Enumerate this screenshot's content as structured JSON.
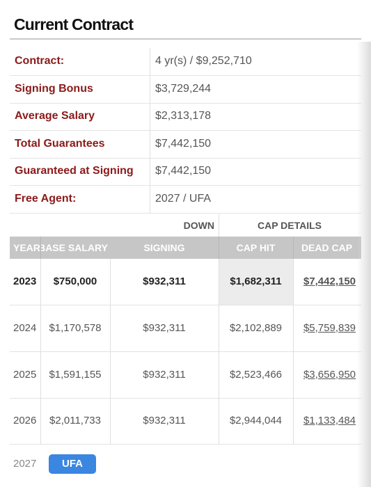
{
  "header": {
    "title": "Current Contract"
  },
  "summary": {
    "rows": [
      [
        "Contract:",
        "4 yr(s) / $9,252,710"
      ],
      [
        "Signing Bonus",
        "$3,729,244"
      ],
      [
        "Average Salary",
        "$2,313,178"
      ],
      [
        "Total Guarantees",
        "$7,442,150"
      ],
      [
        "Guaranteed at Signing",
        "$7,442,150"
      ],
      [
        "Free Agent:",
        "2027 / UFA"
      ]
    ]
  },
  "table": {
    "group_headers": [
      "DOWN",
      "CAP DETAILS"
    ],
    "columns": [
      "YEAR",
      "BASE SALARY",
      "SIGNING",
      "CAP HIT",
      "DEAD CAP"
    ],
    "rows": [
      [
        "2023",
        "$750,000",
        "$932,311",
        "$1,682,311",
        "$7,442,150"
      ],
      [
        "2024",
        "$1,170,578",
        "$932,311",
        "$2,102,889",
        "$5,759,839"
      ],
      [
        "2025",
        "$1,591,155",
        "$932,311",
        "$2,523,466",
        "$3,656,950"
      ],
      [
        "2026",
        "$2,011,733",
        "$932,311",
        "$2,944,044",
        "$1,133,484"
      ]
    ],
    "free_agent_row": {
      "year": "2027",
      "badge": "UFA"
    }
  }
}
